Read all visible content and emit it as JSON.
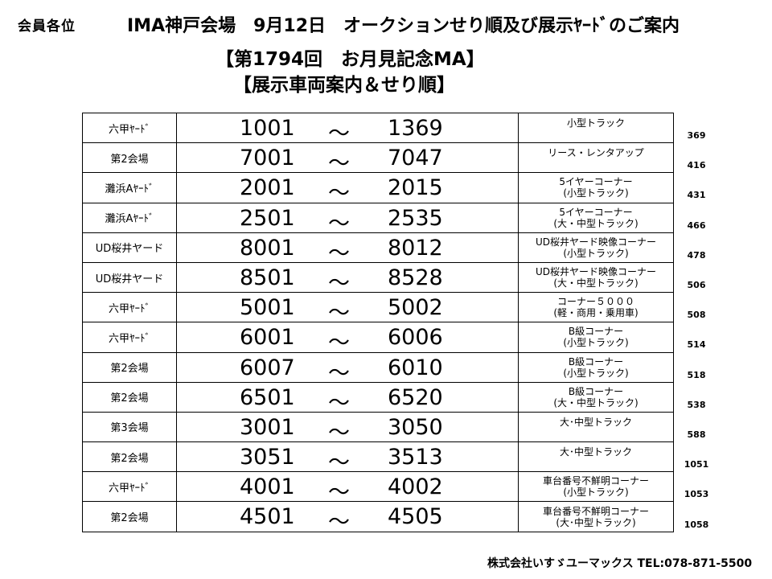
{
  "header": {
    "addressee": "会員各位",
    "title": "IMA神戸会場　9月12日　オークションせり順及び展示ﾔｰﾄﾞのご案内",
    "subtitle": "【第1794回　お月見記念MA】",
    "subtitle2": "【展示車両案内＆せり順】"
  },
  "table": {
    "tilde": "～",
    "rows": [
      {
        "location": "六甲ﾔｰﾄﾞ",
        "from": "1001",
        "to": "1369",
        "category": [
          "小型トラック"
        ],
        "count": "369"
      },
      {
        "location": "第2会場",
        "from": "7001",
        "to": "7047",
        "category": [
          "リース・レンタアップ"
        ],
        "count": "416"
      },
      {
        "location": "灘浜Aﾔｰﾄﾞ",
        "from": "2001",
        "to": "2015",
        "category": [
          "5イヤーコーナー",
          "(小型トラック)"
        ],
        "count": "431"
      },
      {
        "location": "灘浜Aﾔｰﾄﾞ",
        "from": "2501",
        "to": "2535",
        "category": [
          "5イヤーコーナー",
          "(大・中型トラック)"
        ],
        "count": "466"
      },
      {
        "location": "UD桜井ヤード",
        "from": "8001",
        "to": "8012",
        "category": [
          "UD桜井ヤード映像コーナー",
          "(小型トラック)"
        ],
        "count": "478"
      },
      {
        "location": "UD桜井ヤード",
        "from": "8501",
        "to": "8528",
        "category": [
          "UD桜井ヤード映像コーナー",
          "(大・中型トラック)"
        ],
        "count": "506"
      },
      {
        "location": "六甲ﾔｰﾄﾞ",
        "from": "5001",
        "to": "5002",
        "category": [
          "コーナー５０００",
          "(軽・商用・乗用車)"
        ],
        "count": "508"
      },
      {
        "location": "六甲ﾔｰﾄﾞ",
        "from": "6001",
        "to": "6006",
        "category": [
          "B級コーナー",
          "(小型トラック)"
        ],
        "count": "514"
      },
      {
        "location": "第2会場",
        "from": "6007",
        "to": "6010",
        "category": [
          "B級コーナー",
          "(小型トラック)"
        ],
        "count": "518"
      },
      {
        "location": "第2会場",
        "from": "6501",
        "to": "6520",
        "category": [
          "B級コーナー",
          "(大・中型トラック)"
        ],
        "count": "538"
      },
      {
        "location": "第3会場",
        "from": "3001",
        "to": "3050",
        "category": [
          "大･中型トラック"
        ],
        "count": "588"
      },
      {
        "location": "第2会場",
        "from": "3051",
        "to": "3513",
        "category": [
          "大･中型トラック"
        ],
        "count": "1051"
      },
      {
        "location": "六甲ﾔｰﾄﾞ",
        "from": "4001",
        "to": "4002",
        "category": [
          "車台番号不鮮明コーナー",
          "(小型トラック)"
        ],
        "count": "1053"
      },
      {
        "location": "第2会場",
        "from": "4501",
        "to": "4505",
        "category": [
          "車台番号不鮮明コーナー",
          "(大･中型トラック)"
        ],
        "count": "1058"
      }
    ]
  },
  "footer": {
    "company": "株式会社いすゞユーマックス TEL:078-871-5500"
  }
}
